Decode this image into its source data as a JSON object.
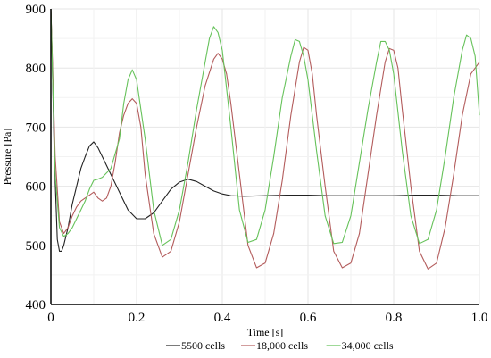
{
  "chart_data": {
    "type": "line",
    "title": "",
    "xlabel": "Time [s]",
    "ylabel": "Pressure [Pa]",
    "xlim": [
      0,
      1.0
    ],
    "ylim": [
      400,
      900
    ],
    "x_ticks": [
      0,
      0.2,
      0.4,
      0.6,
      0.8,
      1.0
    ],
    "x_tick_labels": [
      "0",
      "0.2",
      "0.4",
      "0.6",
      "0.8",
      "1.0"
    ],
    "y_ticks": [
      400,
      500,
      600,
      700,
      800,
      900
    ],
    "y_tick_labels": [
      "400",
      "500",
      "600",
      "700",
      "800",
      "900"
    ],
    "grid": true,
    "legend_position": "bottom",
    "series": [
      {
        "name": "5500 cells",
        "color": "#222222",
        "x": [
          0.0,
          0.003,
          0.008,
          0.015,
          0.02,
          0.025,
          0.03,
          0.04,
          0.05,
          0.06,
          0.07,
          0.08,
          0.09,
          0.1,
          0.11,
          0.12,
          0.14,
          0.16,
          0.18,
          0.2,
          0.22,
          0.24,
          0.26,
          0.28,
          0.3,
          0.32,
          0.34,
          0.36,
          0.38,
          0.4,
          0.42,
          0.45,
          0.5,
          0.55,
          0.6,
          0.65,
          0.7,
          0.75,
          0.8,
          0.85,
          0.9,
          0.95,
          1.0
        ],
        "y": [
          900,
          820,
          650,
          510,
          490,
          490,
          500,
          530,
          570,
          600,
          630,
          650,
          668,
          675,
          665,
          650,
          620,
          590,
          560,
          545,
          545,
          555,
          575,
          595,
          607,
          612,
          608,
          600,
          592,
          587,
          584,
          583,
          584,
          585,
          585,
          584,
          584,
          584,
          584,
          585,
          585,
          584,
          584
        ]
      },
      {
        "name": "18,000 cells",
        "color": "#b35c5c",
        "x": [
          0.0,
          0.005,
          0.01,
          0.02,
          0.03,
          0.04,
          0.05,
          0.06,
          0.07,
          0.08,
          0.09,
          0.1,
          0.11,
          0.12,
          0.13,
          0.14,
          0.15,
          0.16,
          0.17,
          0.18,
          0.19,
          0.2,
          0.21,
          0.22,
          0.24,
          0.26,
          0.28,
          0.3,
          0.32,
          0.34,
          0.36,
          0.38,
          0.39,
          0.4,
          0.41,
          0.42,
          0.44,
          0.46,
          0.48,
          0.5,
          0.52,
          0.54,
          0.56,
          0.58,
          0.59,
          0.6,
          0.61,
          0.62,
          0.64,
          0.66,
          0.68,
          0.7,
          0.72,
          0.74,
          0.76,
          0.78,
          0.79,
          0.8,
          0.81,
          0.82,
          0.84,
          0.86,
          0.88,
          0.9,
          0.92,
          0.94,
          0.96,
          0.98,
          1.0
        ],
        "y": [
          900,
          780,
          650,
          540,
          520,
          530,
          550,
          565,
          575,
          580,
          585,
          590,
          580,
          575,
          580,
          600,
          640,
          690,
          720,
          740,
          748,
          740,
          700,
          620,
          520,
          480,
          490,
          540,
          620,
          700,
          770,
          815,
          825,
          815,
          790,
          740,
          620,
          500,
          462,
          470,
          520,
          610,
          720,
          810,
          835,
          830,
          790,
          720,
          600,
          490,
          462,
          470,
          520,
          620,
          720,
          810,
          833,
          830,
          800,
          730,
          600,
          490,
          460,
          470,
          530,
          620,
          720,
          790,
          810
        ]
      },
      {
        "name": "34,000 cells",
        "color": "#66c25a",
        "x": [
          0.0,
          0.005,
          0.01,
          0.02,
          0.03,
          0.04,
          0.05,
          0.06,
          0.07,
          0.08,
          0.09,
          0.1,
          0.11,
          0.12,
          0.14,
          0.16,
          0.17,
          0.18,
          0.19,
          0.2,
          0.22,
          0.24,
          0.26,
          0.28,
          0.3,
          0.32,
          0.34,
          0.36,
          0.37,
          0.38,
          0.39,
          0.4,
          0.42,
          0.44,
          0.46,
          0.48,
          0.5,
          0.52,
          0.54,
          0.56,
          0.57,
          0.58,
          0.59,
          0.6,
          0.62,
          0.64,
          0.66,
          0.68,
          0.7,
          0.72,
          0.74,
          0.76,
          0.77,
          0.78,
          0.79,
          0.8,
          0.82,
          0.84,
          0.86,
          0.88,
          0.9,
          0.92,
          0.94,
          0.96,
          0.97,
          0.98,
          0.99,
          1.0
        ],
        "y": [
          900,
          760,
          620,
          530,
          515,
          520,
          530,
          545,
          560,
          575,
          595,
          610,
          612,
          615,
          630,
          680,
          740,
          780,
          797,
          780,
          680,
          560,
          500,
          510,
          560,
          640,
          730,
          810,
          850,
          870,
          860,
          830,
          700,
          560,
          505,
          510,
          560,
          650,
          750,
          820,
          848,
          845,
          820,
          780,
          660,
          550,
          503,
          505,
          550,
          640,
          730,
          810,
          845,
          845,
          830,
          790,
          660,
          550,
          503,
          510,
          560,
          650,
          750,
          830,
          856,
          850,
          820,
          720
        ]
      }
    ]
  }
}
